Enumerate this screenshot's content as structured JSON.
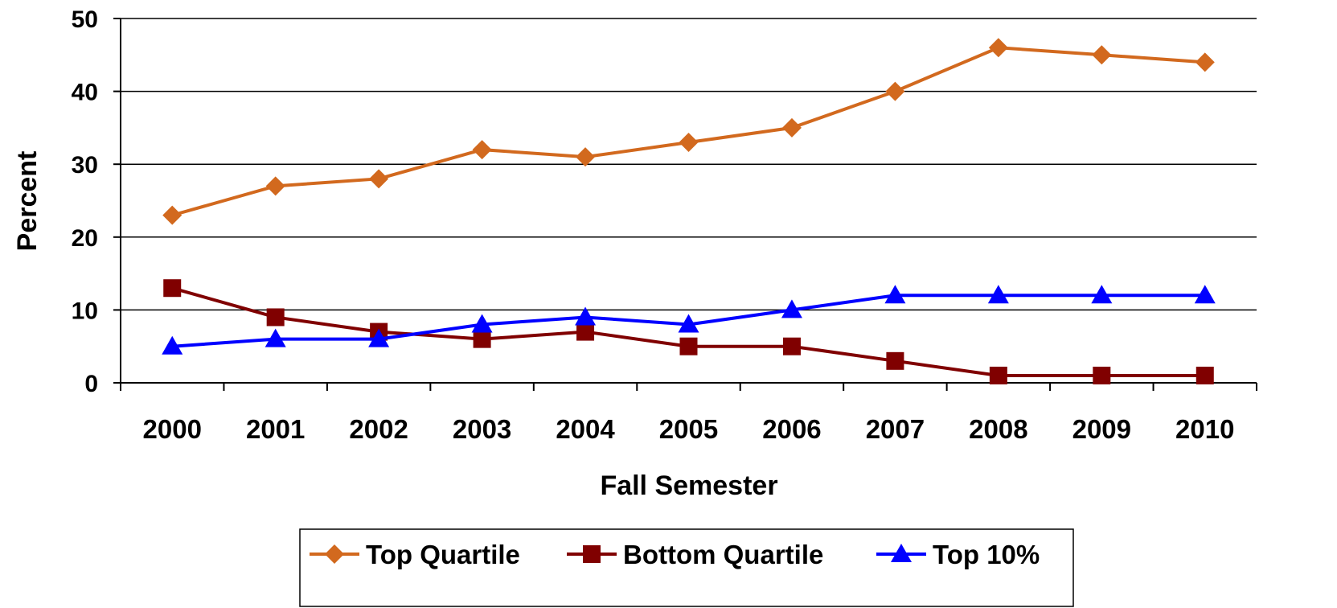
{
  "chart_data": {
    "type": "line",
    "title": "",
    "xlabel": "Fall Semester",
    "ylabel": "Percent",
    "categories": [
      "2000",
      "2001",
      "2002",
      "2003",
      "2004",
      "2005",
      "2006",
      "2007",
      "2008",
      "2009",
      "2010"
    ],
    "ylim": [
      0,
      50
    ],
    "yticks": [
      "0",
      "10",
      "20",
      "30",
      "40",
      "50"
    ],
    "grid": true,
    "legend_position": "bottom",
    "series": [
      {
        "name": "Top Quartile",
        "color": "#D2691E",
        "marker": "diamond",
        "values": [
          23,
          27,
          28,
          32,
          31,
          33,
          35,
          40,
          46,
          45,
          44
        ]
      },
      {
        "name": "Bottom Quartile",
        "color": "#800000",
        "marker": "square",
        "values": [
          13,
          9,
          7,
          6,
          7,
          5,
          5,
          3,
          1,
          1,
          1
        ]
      },
      {
        "name": "Top 10%",
        "color": "#0000FF",
        "marker": "triangle",
        "values": [
          5,
          6,
          6,
          8,
          9,
          8,
          10,
          12,
          12,
          12,
          12
        ]
      }
    ]
  }
}
